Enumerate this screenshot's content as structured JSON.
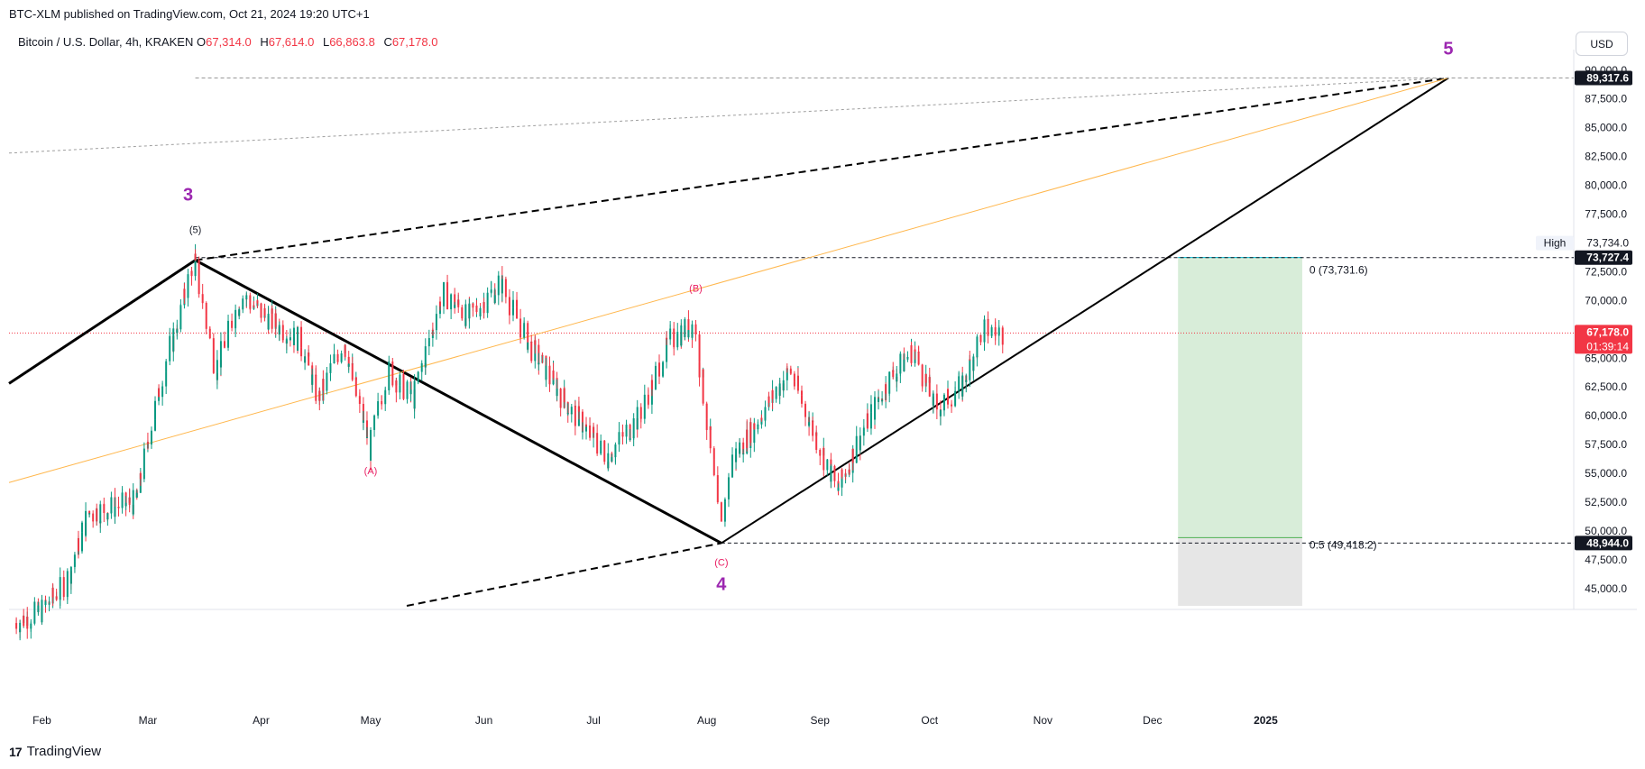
{
  "header": {
    "publisher": "BTC-XLM published on TradingView.com, Oct 21, 2024 19:20 UTC+1",
    "symbol": "Bitcoin / U.S. Dollar, 4h, KRAKEN",
    "ohlc": [
      {
        "k": "O",
        "v": "67,314.0"
      },
      {
        "k": "H",
        "v": "67,614.0"
      },
      {
        "k": "L",
        "v": "66,863.8"
      },
      {
        "k": "C",
        "v": "67,178.0"
      }
    ]
  },
  "currency_button": "USD",
  "footer": {
    "brand": "TradingView",
    "logo": "17"
  },
  "colors": {
    "up": "#089981",
    "down": "#f23645",
    "wave": "#9c27b0",
    "sub_wave": "#e91e63",
    "target_zone": "#c8e6c9",
    "stop_zone": "#e0e0e0",
    "fib0": "#00bcd4",
    "fib05": "#4caf50",
    "orange_line": "#ffb74d"
  },
  "chart_data": {
    "type": "line",
    "x_axis": {
      "ticks": [
        "Feb",
        "Mar",
        "Apr",
        "May",
        "Jun",
        "Jul",
        "Aug",
        "Sep",
        "Oct",
        "Nov",
        "Dec",
        "2025"
      ]
    },
    "y_axis": {
      "ylim": [
        43500,
        91000
      ],
      "ticks": [
        "45,000.0",
        "47,500.0",
        "50,000.0",
        "52,500.0",
        "55,000.0",
        "57,500.0",
        "60,000.0",
        "62,500.0",
        "65,000.0",
        "67,500.0",
        "70,000.0",
        "72,500.0",
        "75,000.0",
        "77,500.0",
        "80,000.0",
        "82,500.0",
        "85,000.0",
        "87,500.0",
        "90,000.0"
      ]
    },
    "price_series": {
      "name": "BTC/USD 4h",
      "x": [
        "2024-01-25",
        "2024-02-01",
        "2024-02-08",
        "2024-02-14",
        "2024-02-20",
        "2024-02-27",
        "2024-03-05",
        "2024-03-14",
        "2024-03-20",
        "2024-03-27",
        "2024-04-05",
        "2024-04-12",
        "2024-04-17",
        "2024-04-24",
        "2024-05-01",
        "2024-05-06",
        "2024-05-13",
        "2024-05-21",
        "2024-05-28",
        "2024-06-06",
        "2024-06-14",
        "2024-06-24",
        "2024-07-05",
        "2024-07-14",
        "2024-07-22",
        "2024-07-29",
        "2024-08-05",
        "2024-08-08",
        "2024-08-14",
        "2024-08-24",
        "2024-09-06",
        "2024-09-12",
        "2024-09-20",
        "2024-09-27",
        "2024-10-03",
        "2024-10-10",
        "2024-10-16",
        "2024-10-21"
      ],
      "close": [
        42000,
        43000,
        45500,
        51500,
        52000,
        52500,
        63000,
        73500,
        64000,
        70500,
        68000,
        66500,
        61500,
        66500,
        57000,
        64000,
        61500,
        70800,
        68500,
        71500,
        66000,
        61000,
        56500,
        60000,
        66500,
        68000,
        50500,
        56000,
        59000,
        64000,
        53500,
        58000,
        63000,
        65800,
        60500,
        62500,
        67500,
        67178
      ]
    },
    "price_labels": [
      {
        "label": "High",
        "value": "73,734.0"
      },
      {
        "label": "",
        "value": "89,317.6"
      },
      {
        "label": "",
        "value": "73,727.4"
      },
      {
        "label": "",
        "value": "67,178.0",
        "sub": "01:39:14"
      },
      {
        "label": "",
        "value": "48,944.0"
      }
    ],
    "fib_levels": [
      {
        "label": "0 (73,731.6)",
        "value": 73731.6
      },
      {
        "label": "0.5 (49,418.2)",
        "value": 49418.2
      }
    ],
    "wave_labels": {
      "primary": [
        {
          "label": "3",
          "x": "2024-03-14",
          "value": 73500
        },
        {
          "label": "4",
          "x": "2024-08-05",
          "value": 48944
        },
        {
          "label": "5",
          "x": "2025-02-20",
          "value": 89317.6
        }
      ],
      "minor": [
        {
          "label": "(5)",
          "x": "2024-03-14",
          "value": 73500
        },
        {
          "label": "(A)",
          "x": "2024-05-01",
          "value": 56500
        },
        {
          "label": "(B)",
          "x": "2024-07-29",
          "value": 70000
        },
        {
          "label": "(C)",
          "x": "2024-08-05",
          "value": 48944
        }
      ]
    },
    "projection": {
      "from": "2024-12-08",
      "to": "2025-01-11",
      "target": 73731.6,
      "entry": 49418.2,
      "stop": 43500
    }
  }
}
